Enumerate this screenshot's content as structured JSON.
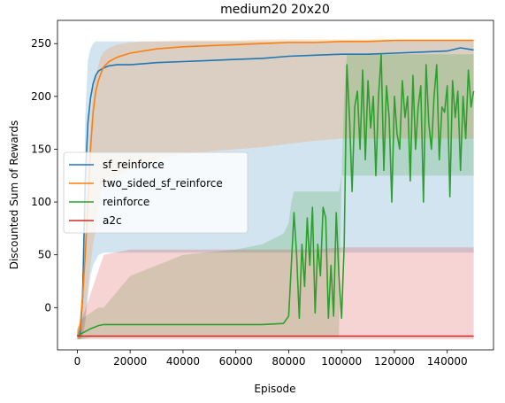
{
  "chart_data": {
    "type": "line",
    "title": "medium20 20x20",
    "xlabel": "Episode",
    "ylabel": "Discounted Sum of Rewards",
    "xlim": [
      -7500,
      157500
    ],
    "ylim": [
      -40,
      272
    ],
    "xticks": [
      0,
      20000,
      40000,
      60000,
      80000,
      100000,
      120000,
      140000
    ],
    "xtick_labels": [
      "0",
      "20000",
      "40000",
      "60000",
      "80000",
      "100000",
      "120000",
      "140000"
    ],
    "yticks": [
      0,
      50,
      100,
      150,
      200,
      250
    ],
    "ytick_labels": [
      "0",
      "50",
      "100",
      "150",
      "200",
      "250"
    ],
    "grid": false,
    "legend_position": "center-left",
    "series": [
      {
        "name": "sf_reinforce",
        "color": "#1f77b4",
        "x": [
          0,
          1000,
          2000,
          3000,
          4000,
          5000,
          6000,
          7000,
          8000,
          10000,
          12000,
          15000,
          20000,
          25000,
          30000,
          40000,
          50000,
          60000,
          70000,
          80000,
          90000,
          100000,
          110000,
          120000,
          130000,
          140000,
          145000,
          150000
        ],
        "y": [
          -27,
          -26,
          10,
          120,
          175,
          198,
          212,
          220,
          224,
          227,
          229,
          230,
          230,
          231,
          232,
          233,
          234,
          235,
          236,
          238,
          239,
          240,
          240,
          241,
          242,
          243,
          246,
          244
        ],
        "band_upper": [
          -20,
          -15,
          30,
          180,
          235,
          245,
          250,
          252,
          252,
          252,
          252,
          252,
          252,
          252,
          252,
          252,
          252,
          252,
          252,
          252,
          252,
          252,
          252,
          252,
          252,
          252,
          252,
          252
        ],
        "band_lower": [
          -30,
          -30,
          -28,
          -15,
          10,
          30,
          40,
          45,
          50,
          52,
          52,
          52,
          52,
          52,
          52,
          52,
          52,
          52,
          52,
          52,
          52,
          52,
          52,
          52,
          52,
          52,
          52,
          52
        ]
      },
      {
        "name": "two_sided_sf_reinforce",
        "color": "#ff7f0e",
        "x": [
          0,
          1000,
          2000,
          3000,
          4000,
          5000,
          6000,
          7000,
          8000,
          9000,
          10000,
          12000,
          15000,
          20000,
          25000,
          30000,
          40000,
          50000,
          60000,
          70000,
          80000,
          90000,
          100000,
          110000,
          120000,
          130000,
          140000,
          150000
        ],
        "y": [
          -27,
          -20,
          10,
          50,
          100,
          150,
          185,
          205,
          215,
          222,
          228,
          233,
          237,
          241,
          243,
          245,
          247,
          248,
          249,
          250,
          251,
          251,
          252,
          252,
          253,
          253,
          253,
          253
        ],
        "band_upper": [
          -20,
          -10,
          20,
          70,
          125,
          175,
          205,
          220,
          230,
          238,
          242,
          246,
          249,
          251,
          252,
          252,
          253,
          253,
          253,
          254,
          254,
          254,
          254,
          254,
          254,
          254,
          254,
          254
        ],
        "band_lower": [
          -30,
          -30,
          -25,
          -10,
          20,
          40,
          60,
          75,
          95,
          110,
          115,
          120,
          125,
          130,
          135,
          140,
          145,
          148,
          150,
          152,
          155,
          158,
          160,
          160,
          160,
          160,
          160,
          160
        ]
      },
      {
        "name": "reinforce",
        "color": "#2ca02c",
        "x": [
          0,
          2000,
          5000,
          8000,
          10000,
          20000,
          40000,
          60000,
          70000,
          78000,
          80000,
          81000,
          82000,
          83000,
          84000,
          85000,
          86000,
          87000,
          88000,
          89000,
          90000,
          91000,
          92000,
          93000,
          94000,
          95000,
          96000,
          97000,
          98000,
          99000,
          100000,
          101000,
          102000,
          103000,
          104000,
          105000,
          106000,
          107000,
          108000,
          109000,
          110000,
          111000,
          112000,
          113000,
          114000,
          115000,
          116000,
          117000,
          118000,
          119000,
          120000,
          121000,
          122000,
          123000,
          124000,
          125000,
          126000,
          127000,
          128000,
          129000,
          130000,
          131000,
          132000,
          133000,
          134000,
          135000,
          136000,
          137000,
          138000,
          139000,
          140000,
          141000,
          142000,
          143000,
          144000,
          145000,
          146000,
          147000,
          148000,
          149000,
          150000
        ],
        "y": [
          -27,
          -24,
          -20,
          -17,
          -16,
          -16,
          -16,
          -16,
          -16,
          -15,
          -8,
          40,
          90,
          50,
          -10,
          60,
          20,
          85,
          40,
          95,
          -5,
          60,
          30,
          95,
          85,
          -10,
          40,
          -8,
          90,
          30,
          -10,
          60,
          230,
          180,
          110,
          190,
          205,
          150,
          225,
          140,
          215,
          170,
          200,
          125,
          200,
          240,
          130,
          210,
          180,
          100,
          200,
          165,
          150,
          215,
          180,
          200,
          120,
          220,
          150,
          190,
          210,
          100,
          230,
          175,
          150,
          200,
          230,
          140,
          190,
          185,
          210,
          105,
          215,
          180,
          205,
          130,
          200,
          160,
          225,
          190,
          205
        ],
        "band_upper": [
          -20,
          -10,
          -5,
          0,
          0,
          30,
          50,
          55,
          60,
          70,
          80,
          100,
          110,
          110,
          110,
          110,
          110,
          110,
          110,
          110,
          110,
          110,
          110,
          110,
          110,
          110,
          110,
          110,
          110,
          110,
          125,
          200,
          240,
          240,
          240,
          240,
          240,
          240,
          240,
          240,
          240,
          240,
          240,
          240,
          240,
          240,
          240,
          240,
          240,
          240,
          240,
          240,
          240,
          240,
          240,
          240,
          240,
          240,
          240,
          240,
          240,
          240,
          240,
          240,
          240,
          240,
          240,
          240,
          240,
          240,
          240,
          240,
          240,
          240,
          240,
          240,
          240,
          240,
          240,
          240,
          240
        ],
        "band_lower": [
          -30,
          -30,
          -28,
          -28,
          -28,
          -28,
          -28,
          -28,
          -28,
          -28,
          -28,
          -28,
          -28,
          -28,
          -28,
          -28,
          -28,
          -28,
          -28,
          -28,
          -28,
          -28,
          -28,
          -28,
          -28,
          -28,
          -28,
          -28,
          -28,
          -28,
          125,
          125,
          125,
          125,
          125,
          125,
          125,
          125,
          125,
          125,
          125,
          125,
          125,
          125,
          125,
          125,
          125,
          125,
          125,
          125,
          125,
          125,
          125,
          125,
          125,
          125,
          125,
          125,
          125,
          125,
          125,
          125,
          125,
          125,
          125,
          125,
          125,
          125,
          125,
          125,
          125,
          125,
          125,
          125,
          125,
          125,
          125,
          125,
          125,
          125,
          125
        ]
      },
      {
        "name": "a2c",
        "color": "#d62728",
        "x": [
          0,
          10000,
          20000,
          30000,
          40000,
          50000,
          60000,
          70000,
          80000,
          90000,
          100000,
          110000,
          120000,
          130000,
          140000,
          150000
        ],
        "y": [
          -27,
          -27,
          -27,
          -27,
          -27,
          -27,
          -27,
          -27,
          -27,
          -27,
          -27,
          -27,
          -27,
          -27,
          -27,
          -27
        ],
        "band_upper": [
          -24,
          50,
          55,
          55,
          55,
          55,
          55,
          55,
          55,
          55,
          57,
          57,
          57,
          57,
          57,
          57
        ],
        "band_lower": [
          -30,
          -30,
          -30,
          -30,
          -30,
          -30,
          -30,
          -30,
          -30,
          -30,
          -30,
          -30,
          -30,
          -30,
          -30,
          -30
        ]
      }
    ]
  }
}
